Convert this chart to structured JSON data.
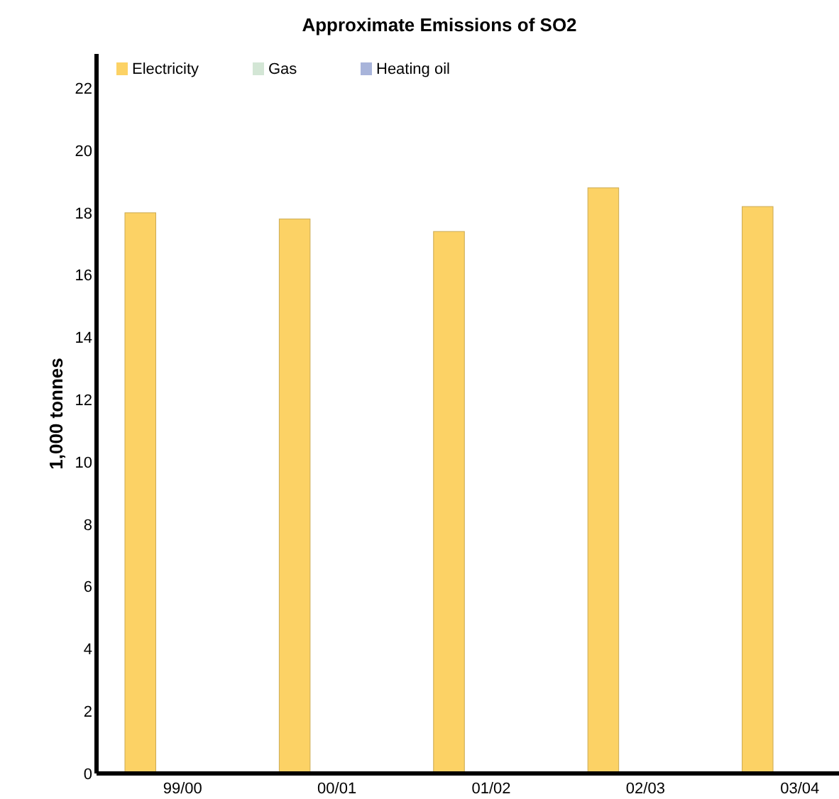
{
  "chart_data": {
    "type": "bar",
    "title": "Approximate Emissions of SO2",
    "ylabel": "1,000 tonnes",
    "categories": [
      "99/00",
      "00/01",
      "01/02",
      "02/03",
      "03/04"
    ],
    "series": [
      {
        "name": "Electricity",
        "color": "#fcd265",
        "values": [
          18.0,
          17.8,
          17.4,
          18.8,
          18.2
        ]
      },
      {
        "name": "Gas",
        "color": "#d3e6d5",
        "values": [
          0,
          0,
          0,
          0,
          0
        ]
      },
      {
        "name": "Heating oil",
        "color": "#a8b4da",
        "values": [
          0,
          0,
          0,
          0,
          0
        ]
      }
    ],
    "ylim": [
      0,
      23.1
    ],
    "yticks": [
      0,
      2,
      4,
      6,
      8,
      10,
      12,
      14,
      16,
      18,
      20,
      22
    ],
    "grid": false,
    "legend": "top left"
  }
}
